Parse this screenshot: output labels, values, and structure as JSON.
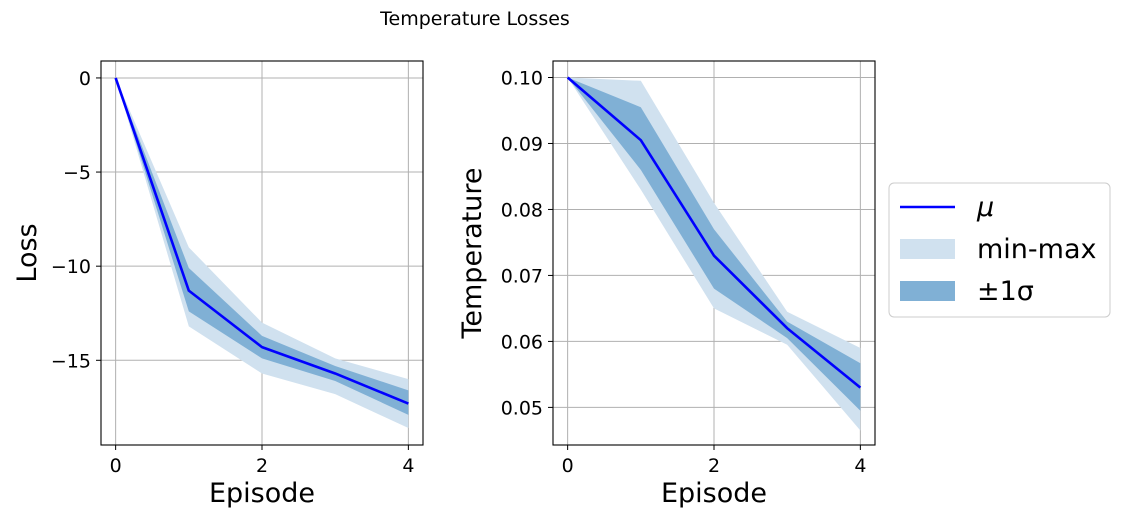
{
  "figure": {
    "suptitle": "Temperature Losses"
  },
  "colors": {
    "mean_line": "#0000ff",
    "minmax_fill": "#d0e1ef",
    "std_fill": "#80b0d5",
    "grid": "#b0b0b0",
    "axes": "#000000"
  },
  "legend": {
    "placement": "center-right",
    "entries": [
      {
        "label": "μ",
        "kind": "line"
      },
      {
        "label": "min-max",
        "kind": "minmax"
      },
      {
        "label": "±1σ",
        "kind": "std"
      }
    ]
  },
  "chart_data": [
    {
      "type": "line",
      "title": "",
      "xlabel": "Episode",
      "ylabel": "Loss",
      "grid": true,
      "xlim": [
        -0.2,
        4.2
      ],
      "ylim": [
        -19.5,
        0.9
      ],
      "xticks": [
        0,
        2,
        4
      ],
      "xtick_labels": [
        "0",
        "2",
        "4"
      ],
      "yticks": [
        0,
        -5,
        -10,
        -15
      ],
      "ytick_labels": [
        "0",
        "−5",
        "−10",
        "−15"
      ],
      "x": [
        0,
        1,
        2,
        3,
        4
      ],
      "series": [
        {
          "name": "μ",
          "values": [
            0,
            -11.3,
            -14.3,
            -15.7,
            -17.3
          ]
        },
        {
          "name": "min-max",
          "lower": [
            0,
            -13.2,
            -15.7,
            -16.8,
            -18.6
          ],
          "upper": [
            0,
            -9.0,
            -13.0,
            -14.9,
            -16.0
          ]
        },
        {
          "name": "±1σ",
          "lower": [
            0,
            -12.4,
            -14.9,
            -16.1,
            -17.9
          ],
          "upper": [
            0,
            -10.1,
            -13.7,
            -15.3,
            -16.6
          ]
        }
      ]
    },
    {
      "type": "line",
      "title": "",
      "xlabel": "Episode",
      "ylabel": "Temperature",
      "grid": true,
      "xlim": [
        -0.2,
        4.2
      ],
      "ylim": [
        0.0443,
        0.1025
      ],
      "xticks": [
        0,
        2,
        4
      ],
      "xtick_labels": [
        "0",
        "2",
        "4"
      ],
      "yticks": [
        0.1,
        0.09,
        0.08,
        0.07,
        0.06,
        0.05
      ],
      "ytick_labels": [
        "0.10",
        "0.09",
        "0.08",
        "0.07",
        "0.06",
        "0.05"
      ],
      "x": [
        0,
        1,
        2,
        3,
        4
      ],
      "series": [
        {
          "name": "μ",
          "values": [
            0.1,
            0.0905,
            0.073,
            0.062,
            0.053
          ]
        },
        {
          "name": "min-max",
          "lower": [
            0.1,
            0.083,
            0.065,
            0.0595,
            0.0465
          ],
          "upper": [
            0.1,
            0.0995,
            0.081,
            0.0645,
            0.059
          ]
        },
        {
          "name": "±1σ",
          "lower": [
            0.1,
            0.086,
            0.068,
            0.0605,
            0.0495
          ],
          "upper": [
            0.1,
            0.0955,
            0.077,
            0.063,
            0.0567
          ]
        }
      ]
    }
  ]
}
